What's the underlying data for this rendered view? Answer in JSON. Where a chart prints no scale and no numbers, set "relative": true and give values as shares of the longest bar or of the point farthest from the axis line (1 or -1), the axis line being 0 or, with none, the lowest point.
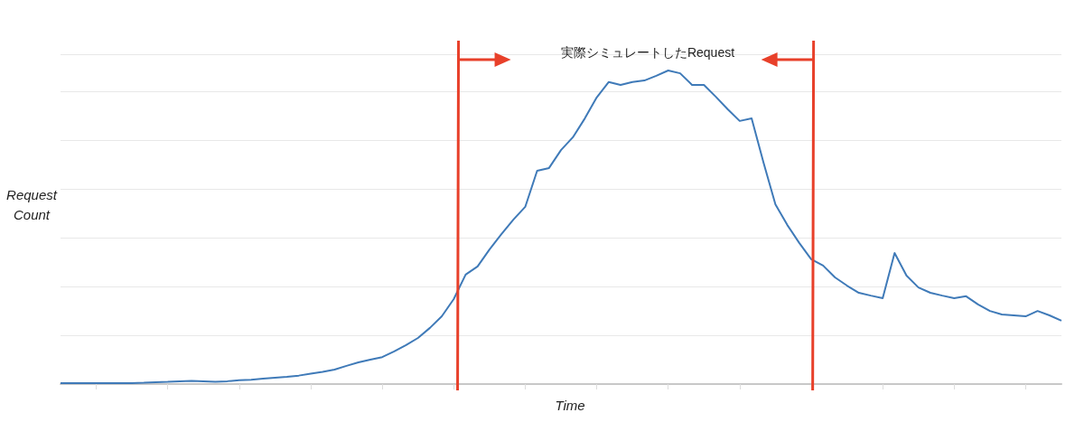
{
  "chart_data": {
    "type": "line",
    "relative": true,
    "xlabel": "Time",
    "ylabel": "Request Count",
    "annotations": [
      "実際シミュレートしたRequest"
    ],
    "grid": "y",
    "marker": "none",
    "line_style": "solid",
    "categories": [
      null,
      null,
      null,
      null,
      null,
      null,
      null,
      null,
      null,
      null,
      null,
      null,
      null,
      null,
      null,
      null,
      null,
      null,
      null,
      null,
      null,
      null,
      null,
      null,
      null,
      null,
      null,
      null,
      null,
      null,
      null,
      null,
      null,
      null,
      null,
      null,
      null,
      null,
      null,
      null,
      null,
      null,
      null,
      null,
      null,
      null,
      null,
      null,
      null,
      null,
      null,
      null,
      null,
      null,
      null,
      null,
      null,
      null,
      null,
      null,
      null,
      null,
      null,
      null,
      null,
      null,
      null,
      null,
      null,
      null,
      null,
      null,
      null,
      null,
      null,
      null,
      null,
      null,
      null,
      null,
      null,
      null,
      null,
      null,
      null
    ],
    "series": [
      {
        "color": "#3f7ab8",
        "values": [
          0.003,
          0.003,
          0.003,
          0.003,
          0.003,
          0.003,
          0.003,
          0.004,
          0.006,
          0.007,
          0.009,
          0.01,
          0.009,
          0.007,
          0.009,
          0.012,
          0.014,
          0.017,
          0.02,
          0.023,
          0.027,
          0.033,
          0.039,
          0.046,
          0.058,
          0.069,
          0.078,
          0.086,
          0.104,
          0.124,
          0.147,
          0.179,
          0.216,
          0.271,
          0.349,
          0.375,
          0.429,
          0.478,
          0.524,
          0.565,
          0.68,
          0.689,
          0.746,
          0.787,
          0.847,
          0.914,
          0.963,
          0.954,
          0.963,
          0.968,
          0.983,
          1,
          0.991,
          0.954,
          0.954,
          0.916,
          0.876,
          0.839,
          0.847,
          0.706,
          0.573,
          0.507,
          0.45,
          0.398,
          0.378,
          0.34,
          0.314,
          0.291,
          0.282,
          0.274,
          0.418,
          0.346,
          0.308,
          0.291,
          0.282,
          0.274,
          0.28,
          0.254,
          0.233,
          0.222,
          0.219,
          0.216,
          0.233,
          0.219,
          0.202
        ]
      }
    ]
  }
}
